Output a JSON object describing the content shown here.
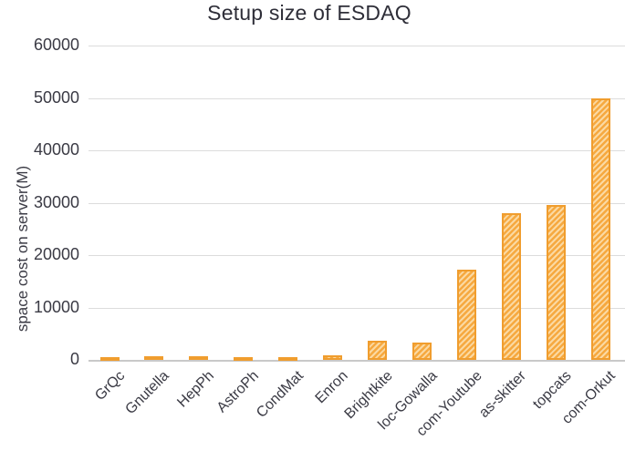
{
  "chart_data": {
    "type": "bar",
    "title": "Setup size of ESDAQ",
    "xlabel": "",
    "ylabel": "space cost on server(M)",
    "categories": [
      "GrQc",
      "Gnutella",
      "HepPh",
      "AstroPh",
      "CondMat",
      "Enron",
      "Brightkite",
      "loc-Gowalla",
      "com-Youtube",
      "as-skitter",
      "topcats",
      "com-Orkut"
    ],
    "values": [
      400,
      750,
      750,
      450,
      450,
      800,
      3600,
      3300,
      17300,
      28000,
      29500,
      50000
    ],
    "ylim": [
      0,
      60000
    ],
    "yticks": [
      0,
      10000,
      20000,
      30000,
      40000,
      50000,
      60000
    ],
    "grid": true,
    "legend": false,
    "bar_pattern": "diagonal-stripes-up"
  },
  "colors": {
    "bar_border": "#f09d2e",
    "bar_fill_base": "#f6a940",
    "bar_fill_stripe": "#fbd9a2",
    "gridline": "#dcdcdc",
    "axis_line": "#c9c9c9",
    "text": "#3a3a44",
    "title_text": "#2e2e38"
  }
}
